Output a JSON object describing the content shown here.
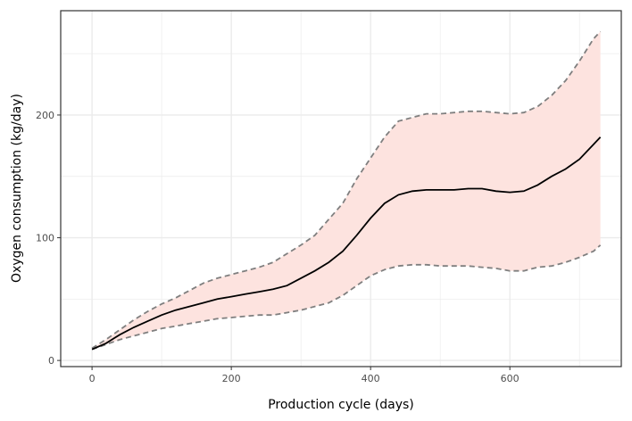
{
  "chart_data": {
    "type": "area",
    "xlabel": "Production cycle (days)",
    "ylabel": "Oxygen consumption (kg/day)",
    "xlim": [
      -45,
      760
    ],
    "ylim": [
      -5,
      285
    ],
    "x_ticks": [
      0,
      200,
      400,
      600
    ],
    "y_ticks": [
      0,
      100,
      200
    ],
    "grid": true,
    "colors": {
      "ribbon_fill": "#fde3df",
      "mean_line": "#000000",
      "bound_line": "#7f7f7f",
      "grid": "#ebebeb",
      "panel_border": "#333333"
    },
    "series": [
      {
        "role": "mean",
        "x": [
          0,
          20,
          40,
          60,
          80,
          100,
          120,
          140,
          160,
          180,
          200,
          220,
          240,
          260,
          280,
          300,
          320,
          340,
          360,
          380,
          400,
          420,
          440,
          460,
          480,
          500,
          520,
          540,
          560,
          580,
          600,
          620,
          640,
          660,
          680,
          700,
          720,
          730
        ],
        "y": [
          9,
          14,
          21,
          27,
          32,
          37,
          41,
          44,
          47,
          50,
          52,
          54,
          56,
          58,
          61,
          67,
          73,
          80,
          89,
          102,
          116,
          128,
          135,
          138,
          139,
          139,
          139,
          140,
          140,
          138,
          137,
          138,
          143,
          150,
          156,
          164,
          176,
          182
        ]
      },
      {
        "role": "upper",
        "x": [
          0,
          20,
          40,
          60,
          80,
          100,
          120,
          140,
          160,
          180,
          200,
          220,
          240,
          260,
          280,
          300,
          320,
          340,
          360,
          380,
          400,
          420,
          440,
          460,
          480,
          500,
          520,
          540,
          560,
          580,
          600,
          620,
          640,
          660,
          680,
          700,
          720,
          730
        ],
        "y": [
          10,
          17,
          25,
          33,
          40,
          46,
          51,
          57,
          63,
          67,
          70,
          73,
          76,
          80,
          87,
          94,
          102,
          115,
          128,
          148,
          165,
          182,
          195,
          198,
          201,
          201,
          202,
          203,
          203,
          202,
          201,
          202,
          207,
          216,
          228,
          244,
          262,
          268
        ]
      },
      {
        "role": "lower",
        "x": [
          0,
          20,
          40,
          60,
          80,
          100,
          120,
          140,
          160,
          180,
          200,
          220,
          240,
          260,
          280,
          300,
          320,
          340,
          360,
          380,
          400,
          420,
          440,
          460,
          480,
          500,
          520,
          540,
          560,
          580,
          600,
          620,
          640,
          660,
          680,
          700,
          720,
          730
        ],
        "y": [
          9,
          13,
          17,
          20,
          23,
          26,
          28,
          30,
          32,
          34,
          35,
          36,
          37,
          37,
          39,
          41,
          44,
          47,
          53,
          61,
          69,
          74,
          77,
          78,
          78,
          77,
          77,
          77,
          76,
          75,
          73,
          73,
          76,
          77,
          80,
          84,
          89,
          94
        ]
      }
    ]
  }
}
